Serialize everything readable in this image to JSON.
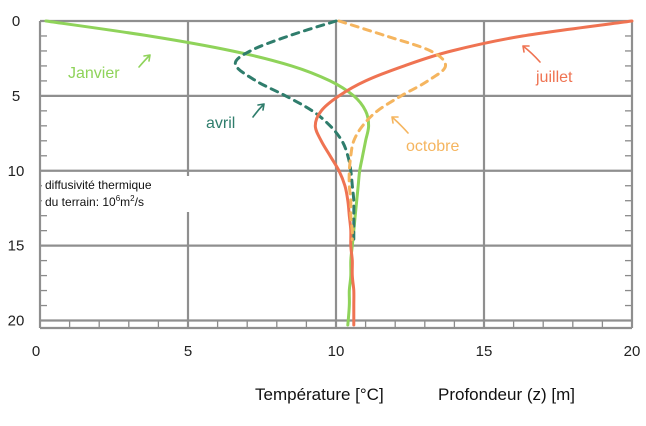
{
  "chart_data": {
    "type": "line",
    "title": "",
    "xlabel": "Température [°C]",
    "ylabel": "Profondeur (z) [m]",
    "xlim": [
      0,
      20
    ],
    "ylim": [
      0,
      20.5
    ],
    "y_inverted": true,
    "grid": true,
    "x_ticks": [
      0,
      5,
      10,
      15,
      20
    ],
    "x_tick_labels": [
      "0",
      "5",
      "10",
      "15",
      "20"
    ],
    "y_ticks": [
      0,
      5,
      10,
      15,
      20
    ],
    "y_tick_labels": [
      "0",
      "5",
      "10",
      "15",
      "20"
    ],
    "annotation": {
      "line1": "diffusivité thermique",
      "line2_prefix": "du terrain: 10",
      "line2_sup": "6",
      "line2_unit": "m",
      "line2_sup2": "2",
      "line2_suffix": "/s"
    },
    "series": [
      {
        "name": "Janvier",
        "color": "#8fd35a",
        "style": "solid",
        "depth": [
          0,
          1,
          2,
          3,
          4,
          5,
          6,
          7,
          8,
          9,
          10,
          11,
          12,
          13,
          14,
          15,
          16,
          17,
          18,
          19,
          20.3
        ],
        "temperature": [
          0.2,
          3.7,
          6.5,
          8.5,
          9.8,
          10.6,
          11.0,
          11.1,
          11.0,
          10.9,
          10.8,
          10.75,
          10.7,
          10.65,
          10.6,
          10.55,
          10.5,
          10.5,
          10.45,
          10.45,
          10.4
        ]
      },
      {
        "name": "avril",
        "color": "#2f7d6c",
        "style": "dashed",
        "depth": [
          0,
          1,
          2,
          2.9,
          4,
          5,
          6,
          7,
          8,
          9,
          10,
          11,
          12,
          13,
          14,
          14.6
        ],
        "temperature": [
          10.0,
          8.4,
          7.1,
          6.6,
          7.3,
          8.3,
          9.2,
          9.8,
          10.2,
          10.4,
          10.5,
          10.55,
          10.6,
          10.6,
          10.6,
          10.6
        ]
      },
      {
        "name": "juillet",
        "color": "#ef7352",
        "style": "solid",
        "depth": [
          0,
          1,
          2,
          3,
          4,
          5,
          6,
          7,
          8,
          9,
          10,
          11,
          12,
          13,
          14,
          15,
          16,
          17,
          18,
          19,
          20.3
        ],
        "temperature": [
          20.0,
          16.3,
          13.9,
          12.3,
          11.0,
          10.1,
          9.5,
          9.3,
          9.5,
          9.8,
          10.1,
          10.3,
          10.4,
          10.45,
          10.5,
          10.5,
          10.55,
          10.55,
          10.6,
          10.6,
          10.6
        ]
      },
      {
        "name": "octobre",
        "color": "#f5b55f",
        "style": "dashed",
        "depth": [
          0,
          1,
          2,
          3,
          4,
          5,
          6,
          7,
          8,
          9,
          10,
          11,
          12,
          13,
          14,
          14.6
        ],
        "temperature": [
          10.1,
          11.7,
          13.2,
          13.7,
          13.1,
          12.2,
          11.4,
          10.9,
          10.6,
          10.5,
          10.45,
          10.45,
          10.5,
          10.5,
          10.55,
          10.55
        ]
      }
    ]
  }
}
